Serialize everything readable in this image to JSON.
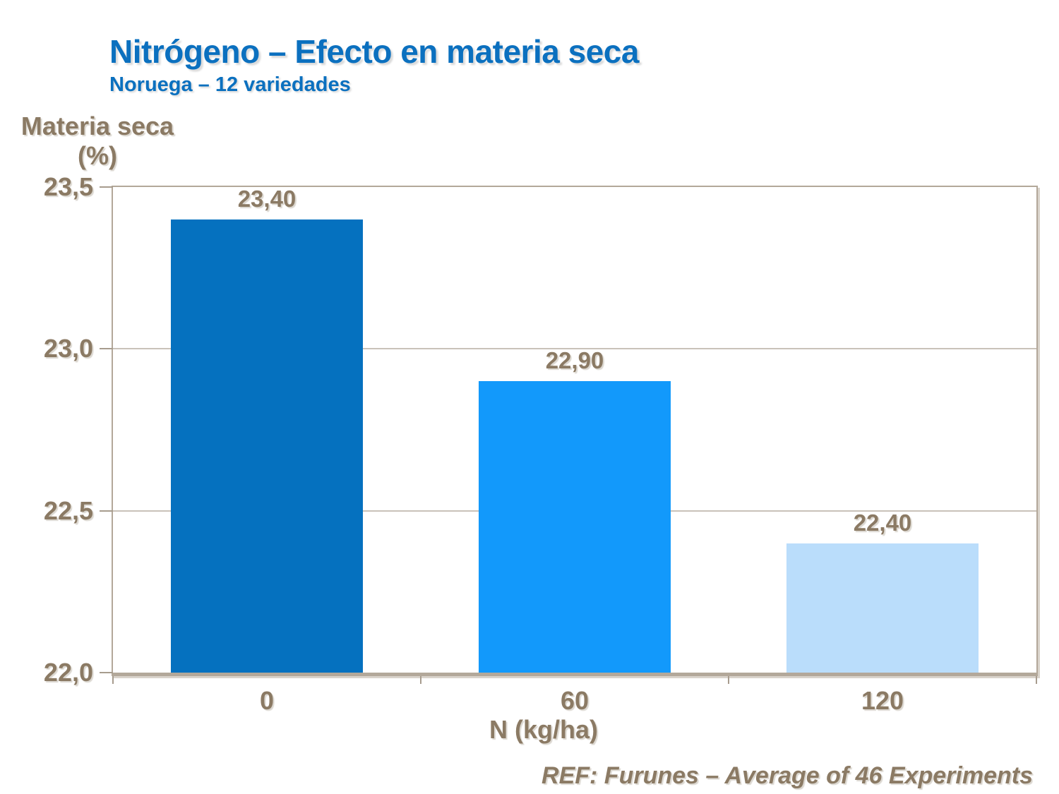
{
  "chart_data": {
    "type": "bar",
    "title": "Nitrógeno – Efecto en materia seca",
    "subtitle": "Noruega – 12 variedades",
    "y_axis_title_line1": "Materia seca",
    "y_axis_title_line2": "(%)",
    "xlabel": "N (kg/ha)",
    "categories": [
      "0",
      "60",
      "120"
    ],
    "values": [
      23.4,
      22.9,
      22.4
    ],
    "value_labels": [
      "23,40",
      "22,90",
      "22,40"
    ],
    "ylim": [
      22.0,
      23.5
    ],
    "yticks": [
      {
        "value": 23.5,
        "label": "23,5"
      },
      {
        "value": 23.0,
        "label": "23,0"
      },
      {
        "value": 22.5,
        "label": "22,5"
      },
      {
        "value": 22.0,
        "label": "22,0"
      }
    ],
    "gridline_values": [
      23.0,
      22.5
    ],
    "grid": "horizontal",
    "legend": "none",
    "footer": "REF: Furunes – Average of 46 Experiments",
    "colors": {
      "bars": [
        "#0571BF",
        "#1299FB",
        "#BADDFB"
      ],
      "title_text": "#0B70BF",
      "label_text": "#8B7A64",
      "frame": "#B3A89A",
      "frame_shadow": "#D9D3CB",
      "gridline": "#C9C2B9",
      "tick": "#A79C8E",
      "background": "#FFFFFF"
    }
  }
}
